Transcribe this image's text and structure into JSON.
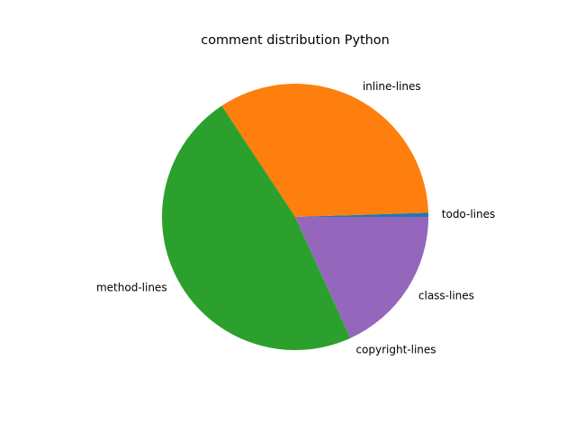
{
  "chart_data": {
    "type": "pie",
    "title": "comment distribution Python",
    "start_angle_deg": 0,
    "direction": "counterclockwise",
    "legend": "none",
    "grid": false,
    "slices": [
      {
        "label": "todo-lines",
        "value": 0.5,
        "color": "#1f77b4"
      },
      {
        "label": "inline-lines",
        "value": 33.8,
        "color": "#ff7f0e"
      },
      {
        "label": "method-lines",
        "value": 47.5,
        "color": "#2ca02c"
      },
      {
        "label": "copyright-lines",
        "value": 0.0,
        "color": "#d62728"
      },
      {
        "label": "class-lines",
        "value": 18.2,
        "color": "#9467bd"
      }
    ]
  }
}
